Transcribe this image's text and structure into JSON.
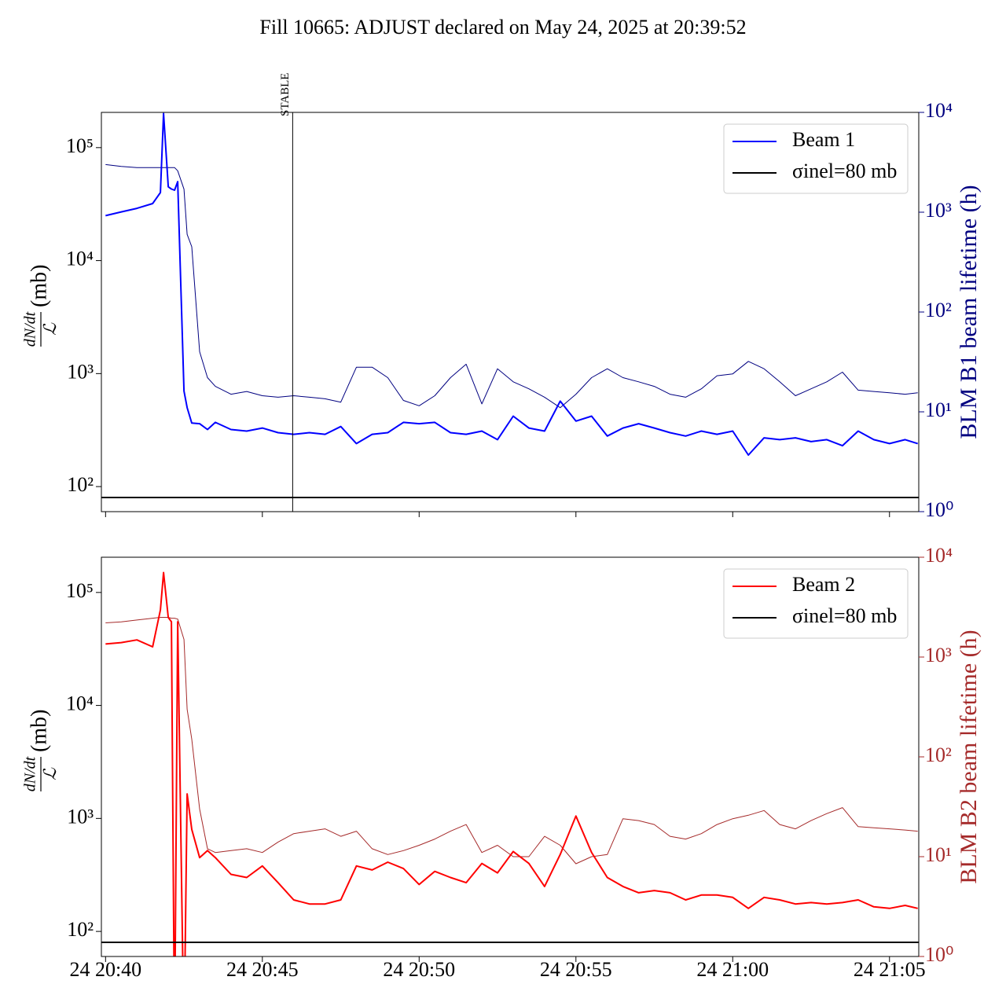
{
  "title": "Fill 10665: ADJUST declared on May 24, 2025 at 20:39:52",
  "chart_data": [
    {
      "type": "line",
      "ylabel": {
        "numerator": "dN/dt",
        "denominator": "ℒ",
        "unit": "(mb)"
      },
      "y2label": "BLM B1 beam lifetime (h)",
      "y2label_color": "#000080",
      "yscale": "log",
      "y2scale": "log",
      "xlim": [
        "24 20:39:52",
        "24 21:05:56"
      ],
      "xticks": [
        "24 20:40",
        "24 20:45",
        "24 20:50",
        "24 20:55",
        "24 21:00",
        "24 21:05"
      ],
      "show_xticklabels": false,
      "ylim": [
        60,
        205000
      ],
      "yticks": [
        {
          "value": 100,
          "label": "10²"
        },
        {
          "value": 1000,
          "label": "10³"
        },
        {
          "value": 10000,
          "label": "10⁴"
        },
        {
          "value": 100000,
          "label": "10⁵"
        }
      ],
      "y2lim": [
        1,
        10000
      ],
      "y2ticks": [
        {
          "value": 1,
          "label": "10⁰"
        },
        {
          "value": 10,
          "label": "10¹"
        },
        {
          "value": 100,
          "label": "10²"
        },
        {
          "value": 1000,
          "label": "10³"
        },
        {
          "value": 10000,
          "label": "10⁴"
        }
      ],
      "legend": "upper right",
      "annotation": {
        "text": "STABLE",
        "x": "24 20:45:58"
      },
      "hlines": [
        {
          "name": "σinel=80 mb",
          "value": 80,
          "color": "#000000"
        }
      ],
      "x": [
        "24 20:40:00",
        "24 20:40:30",
        "24 20:41:00",
        "24 20:41:30",
        "24 20:41:45",
        "24 20:41:51",
        "24 20:42:00",
        "24 20:42:06",
        "24 20:42:12",
        "24 20:42:18",
        "24 20:42:30",
        "24 20:42:36",
        "24 20:42:45",
        "24 20:43:00",
        "24 20:43:15",
        "24 20:43:30",
        "24 20:44:00",
        "24 20:44:30",
        "24 20:45:00",
        "24 20:45:30",
        "24 20:46:00",
        "24 20:46:30",
        "24 20:47:00",
        "24 20:47:30",
        "24 20:48:00",
        "24 20:48:30",
        "24 20:49:00",
        "24 20:49:30",
        "24 20:50:00",
        "24 20:50:30",
        "24 20:51:00",
        "24 20:51:30",
        "24 20:52:00",
        "24 20:52:30",
        "24 20:53:00",
        "24 20:53:30",
        "24 20:54:00",
        "24 20:54:30",
        "24 20:55:00",
        "24 20:55:30",
        "24 20:56:00",
        "24 20:56:30",
        "24 20:57:00",
        "24 20:57:30",
        "24 20:58:00",
        "24 20:58:30",
        "24 20:59:00",
        "24 20:59:30",
        "24 21:00:00",
        "24 21:00:30",
        "24 21:01:00",
        "24 21:01:30",
        "24 21:02:00",
        "24 21:02:30",
        "24 21:03:00",
        "24 21:03:30",
        "24 21:04:00",
        "24 21:04:30",
        "24 21:05:00",
        "24 21:05:30",
        "24 21:05:54"
      ],
      "series": [
        {
          "color": "#000080",
          "width": 1,
          "axis": "y2",
          "values": [
            3000,
            2870,
            2800,
            2800,
            2800,
            2800,
            2800,
            2800,
            2800,
            2600,
            1700,
            600,
            450,
            40,
            22,
            18,
            15,
            16,
            14.5,
            14,
            14.5,
            14,
            13.5,
            12.5,
            28,
            28,
            22,
            13,
            11.5,
            14.5,
            22,
            30,
            12,
            27,
            20,
            17,
            14,
            11,
            15,
            22,
            27,
            22,
            20,
            18,
            15,
            14,
            17,
            23,
            24,
            32,
            27,
            20,
            14.5,
            17,
            20,
            25,
            16.5,
            16,
            15.5,
            15,
            15.5
          ]
        },
        {
          "name": "Beam 1",
          "color": "#0000ff",
          "width": 2,
          "values": [
            25000,
            27000,
            29000,
            32000,
            40000,
            200000,
            45000,
            43000,
            42000,
            50000,
            700,
            500,
            365,
            360,
            320,
            370,
            320,
            310,
            330,
            300,
            290,
            300,
            290,
            340,
            240,
            290,
            300,
            370,
            360,
            370,
            300,
            290,
            310,
            260,
            420,
            330,
            310,
            570,
            380,
            420,
            280,
            330,
            360,
            330,
            300,
            280,
            310,
            290,
            310,
            190,
            270,
            260,
            270,
            250,
            260,
            230,
            310,
            260,
            240,
            260,
            240
          ]
        }
      ]
    },
    {
      "type": "line",
      "ylabel": {
        "numerator": "dN/dt",
        "denominator": "ℒ",
        "unit": "(mb)"
      },
      "y2label": "BLM B2 beam lifetime (h)",
      "y2label_color": "#a52a2a",
      "yscale": "log",
      "y2scale": "log",
      "xlim": [
        "24 20:39:52",
        "24 21:05:56"
      ],
      "xticks": [
        "24 20:40",
        "24 20:45",
        "24 20:50",
        "24 20:55",
        "24 21:00",
        "24 21:05"
      ],
      "show_xticklabels": true,
      "ylim": [
        60,
        205000
      ],
      "yticks": [
        {
          "value": 100,
          "label": "10²"
        },
        {
          "value": 1000,
          "label": "10³"
        },
        {
          "value": 10000,
          "label": "10⁴"
        },
        {
          "value": 100000,
          "label": "10⁵"
        }
      ],
      "y2lim": [
        1,
        10000
      ],
      "y2ticks": [
        {
          "value": 1,
          "label": "10⁰"
        },
        {
          "value": 10,
          "label": "10¹"
        },
        {
          "value": 100,
          "label": "10²"
        },
        {
          "value": 1000,
          "label": "10³"
        },
        {
          "value": 10000,
          "label": "10⁴"
        }
      ],
      "legend": "upper right",
      "hlines": [
        {
          "name": "σinel=80 mb",
          "value": 80,
          "color": "#000000"
        }
      ],
      "x": [
        "24 20:40:00",
        "24 20:40:30",
        "24 20:41:00",
        "24 20:41:30",
        "24 20:41:45",
        "24 20:41:51",
        "24 20:42:00",
        "24 20:42:06",
        "24 20:42:12",
        "24 20:42:18",
        "24 20:42:30",
        "24 20:42:36",
        "24 20:42:45",
        "24 20:43:00",
        "24 20:43:15",
        "24 20:43:30",
        "24 20:44:00",
        "24 20:44:30",
        "24 20:45:00",
        "24 20:45:30",
        "24 20:46:00",
        "24 20:46:30",
        "24 20:47:00",
        "24 20:47:30",
        "24 20:48:00",
        "24 20:48:30",
        "24 20:49:00",
        "24 20:49:30",
        "24 20:50:00",
        "24 20:50:30",
        "24 20:51:00",
        "24 20:51:30",
        "24 20:52:00",
        "24 20:52:30",
        "24 20:53:00",
        "24 20:53:30",
        "24 20:54:00",
        "24 20:54:30",
        "24 20:55:00",
        "24 20:55:30",
        "24 20:56:00",
        "24 20:56:30",
        "24 20:57:00",
        "24 20:57:30",
        "24 20:58:00",
        "24 20:58:30",
        "24 20:59:00",
        "24 20:59:30",
        "24 21:00:00",
        "24 21:00:30",
        "24 21:01:00",
        "24 21:01:30",
        "24 21:02:00",
        "24 21:02:30",
        "24 21:03:00",
        "24 21:03:30",
        "24 21:04:00",
        "24 21:04:30",
        "24 21:05:00",
        "24 21:05:30",
        "24 21:05:54"
      ],
      "series": [
        {
          "color": "#a52a2a",
          "width": 1,
          "axis": "y2",
          "values": [
            2200,
            2250,
            2350,
            2450,
            2500,
            2500,
            2500,
            2450,
            2450,
            2400,
            1500,
            300,
            150,
            30,
            12,
            11,
            11.5,
            12,
            11,
            14,
            17,
            18,
            19,
            16,
            18,
            12,
            10.5,
            11.5,
            13,
            15,
            18,
            21,
            11,
            13,
            10,
            10,
            16,
            13,
            8.5,
            10,
            10.5,
            24,
            23,
            21,
            16,
            15,
            17,
            21,
            24,
            26,
            29,
            21,
            19,
            23,
            27,
            31,
            20,
            19.5,
            19,
            18.5,
            18
          ]
        },
        {
          "name": "Beam 2",
          "color": "#ff0000",
          "width": 2,
          "values": [
            35000,
            36000,
            38000,
            33000,
            70000,
            150000,
            60000,
            55000,
            10,
            55000,
            10,
            1650,
            800,
            450,
            520,
            450,
            320,
            300,
            380,
            270,
            190,
            175,
            175,
            190,
            380,
            350,
            410,
            360,
            260,
            340,
            300,
            270,
            400,
            330,
            510,
            400,
            250,
            480,
            1050,
            500,
            300,
            250,
            220,
            230,
            220,
            190,
            210,
            210,
            200,
            160,
            200,
            190,
            175,
            180,
            175,
            180,
            190,
            165,
            160,
            170,
            160
          ]
        }
      ]
    }
  ]
}
